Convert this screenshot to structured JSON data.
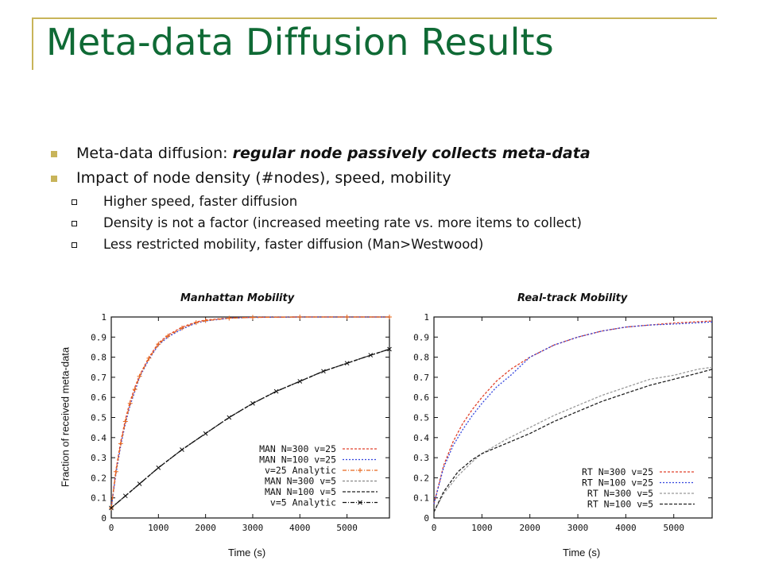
{
  "slide": {
    "title": "Meta-data Diffusion Results",
    "bullets": [
      {
        "text": "Meta-data diffusion: ",
        "emphasis": "regular node passively collects meta-data"
      },
      {
        "text": "Impact of node density (#nodes), speed, mobility"
      }
    ],
    "sub_bullets": [
      "Higher speed, faster diffusion",
      "Density is not a factor (increased meeting rate vs. more items to collect)",
      "Less restricted mobility, faster diffusion (Man>Westwood)"
    ]
  },
  "colors": {
    "title": "#0f6a35",
    "accent": "#c8b45a"
  },
  "chart_data": [
    {
      "type": "line",
      "title": "Manhattan Mobility",
      "xlabel": "Time (s)",
      "ylabel": "Fraction of received meta-data",
      "xlim": [
        0,
        5900
      ],
      "ylim": [
        0,
        1
      ],
      "xticks": [
        0,
        1000,
        2000,
        3000,
        4000,
        5000
      ],
      "yticks": [
        0,
        0.1,
        0.2,
        0.3,
        0.4,
        0.5,
        0.6,
        0.7,
        0.8,
        0.9,
        1
      ],
      "grid": false,
      "legend": "bottom-right",
      "series": [
        {
          "name": "MAN N=300 v=25",
          "color": "#e0402a",
          "dash": "3,2",
          "x": [
            0,
            100,
            200,
            300,
            400,
            500,
            600,
            800,
            1000,
            1200,
            1500,
            1800,
            2000,
            2500,
            3000,
            4000,
            5000,
            5900
          ],
          "y": [
            0.05,
            0.24,
            0.38,
            0.49,
            0.58,
            0.65,
            0.71,
            0.8,
            0.87,
            0.91,
            0.95,
            0.975,
            0.985,
            0.995,
            0.998,
            1.0,
            1.0,
            1.0
          ]
        },
        {
          "name": "MAN N=100 v=25",
          "color": "#3344dd",
          "dash": "2,2",
          "x": [
            0,
            100,
            200,
            300,
            400,
            500,
            600,
            800,
            1000,
            1200,
            1500,
            1800,
            2000,
            2500,
            3000,
            4000,
            5000,
            5900
          ],
          "y": [
            0.05,
            0.22,
            0.36,
            0.47,
            0.56,
            0.63,
            0.7,
            0.79,
            0.86,
            0.9,
            0.94,
            0.97,
            0.98,
            0.994,
            0.998,
            1.0,
            1.0,
            1.0
          ]
        },
        {
          "name": "v=25 Analytic",
          "color": "#e8681e",
          "dash": "5,2,1,2",
          "marker": "+",
          "x": [
            0,
            100,
            200,
            300,
            400,
            500,
            600,
            800,
            1000,
            1200,
            1500,
            1800,
            2000,
            2500,
            3000,
            4000,
            5000,
            5900
          ],
          "y": [
            0.05,
            0.23,
            0.37,
            0.48,
            0.57,
            0.64,
            0.705,
            0.795,
            0.865,
            0.905,
            0.945,
            0.972,
            0.982,
            0.994,
            0.998,
            1.0,
            1.0,
            1.0
          ]
        },
        {
          "name": "MAN N=300 v=5",
          "color": "#888888",
          "dash": "3,2",
          "x": [
            0,
            300,
            600,
            1000,
            1500,
            2000,
            2500,
            3000,
            3500,
            4000,
            4500,
            5000,
            5500,
            5900
          ],
          "y": [
            0.05,
            0.11,
            0.17,
            0.25,
            0.34,
            0.42,
            0.5,
            0.57,
            0.63,
            0.68,
            0.73,
            0.77,
            0.81,
            0.84
          ]
        },
        {
          "name": "MAN N=100 v=5",
          "color": "#222222",
          "dash": "4,2",
          "x": [
            0,
            300,
            600,
            1000,
            1500,
            2000,
            2500,
            3000,
            3500,
            4000,
            4500,
            5000,
            5500,
            5900
          ],
          "y": [
            0.05,
            0.11,
            0.17,
            0.25,
            0.34,
            0.42,
            0.5,
            0.57,
            0.63,
            0.68,
            0.73,
            0.77,
            0.81,
            0.84
          ]
        },
        {
          "name": "v=5 Analytic",
          "color": "#111111",
          "dash": "5,2,1,2",
          "marker": "x",
          "x": [
            0,
            300,
            600,
            1000,
            1500,
            2000,
            2500,
            3000,
            3500,
            4000,
            4500,
            5000,
            5500,
            5900
          ],
          "y": [
            0.05,
            0.11,
            0.17,
            0.25,
            0.34,
            0.42,
            0.5,
            0.57,
            0.63,
            0.68,
            0.73,
            0.77,
            0.81,
            0.84
          ]
        }
      ]
    },
    {
      "type": "line",
      "title": "Real-track Mobility",
      "xlabel": "Time (s)",
      "ylabel": "",
      "xlim": [
        0,
        5800
      ],
      "ylim": [
        0,
        1
      ],
      "xticks": [
        0,
        1000,
        2000,
        3000,
        4000,
        5000
      ],
      "yticks": [
        0,
        0.1,
        0.2,
        0.3,
        0.4,
        0.5,
        0.6,
        0.7,
        0.8,
        0.9,
        1
      ],
      "grid": false,
      "legend": "bottom-right",
      "series": [
        {
          "name": "RT N=300 v=25",
          "color": "#e0402a",
          "dash": "3,2",
          "x": [
            0,
            200,
            400,
            600,
            800,
            1000,
            1300,
            1600,
            2000,
            2500,
            3000,
            3500,
            4000,
            4500,
            5000,
            5800
          ],
          "y": [
            0.07,
            0.26,
            0.38,
            0.47,
            0.54,
            0.6,
            0.68,
            0.74,
            0.8,
            0.86,
            0.9,
            0.93,
            0.95,
            0.96,
            0.97,
            0.98
          ]
        },
        {
          "name": "RT N=100 v=25",
          "color": "#3344dd",
          "dash": "2,2",
          "x": [
            0,
            200,
            400,
            600,
            800,
            1000,
            1300,
            1600,
            2000,
            2500,
            3000,
            3500,
            4000,
            4500,
            5000,
            5800
          ],
          "y": [
            0.07,
            0.25,
            0.36,
            0.44,
            0.51,
            0.57,
            0.65,
            0.71,
            0.8,
            0.86,
            0.9,
            0.93,
            0.95,
            0.96,
            0.965,
            0.975
          ]
        },
        {
          "name": "RT N=300  v=5",
          "color": "#999999",
          "dash": "3,2",
          "x": [
            0,
            200,
            500,
            800,
            1000,
            1500,
            2000,
            2500,
            3000,
            3500,
            4000,
            4500,
            5000,
            5500,
            5800
          ],
          "y": [
            0.03,
            0.12,
            0.21,
            0.28,
            0.32,
            0.39,
            0.45,
            0.51,
            0.56,
            0.61,
            0.65,
            0.69,
            0.71,
            0.74,
            0.75
          ]
        },
        {
          "name": "RT N=100  v=5",
          "color": "#222222",
          "dash": "4,2",
          "x": [
            0,
            200,
            500,
            800,
            1000,
            1500,
            2000,
            2500,
            3000,
            3500,
            4000,
            4500,
            5000,
            5500,
            5800
          ],
          "y": [
            0.03,
            0.13,
            0.23,
            0.29,
            0.32,
            0.37,
            0.42,
            0.48,
            0.53,
            0.58,
            0.62,
            0.66,
            0.69,
            0.72,
            0.74
          ]
        }
      ]
    }
  ]
}
